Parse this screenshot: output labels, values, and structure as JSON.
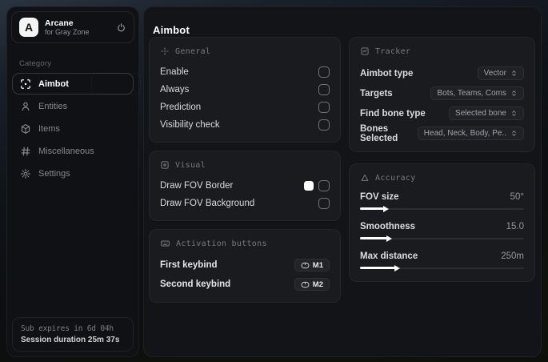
{
  "app": {
    "name": "Arcane",
    "tagline": "for Gray Zone",
    "logo_letter": "A"
  },
  "sidebar": {
    "category_label": "Category",
    "items": [
      {
        "label": "Aimbot",
        "icon": "crosshair-scan-icon",
        "active": true
      },
      {
        "label": "Entities",
        "icon": "person-icon",
        "active": false
      },
      {
        "label": "Items",
        "icon": "package-icon",
        "active": false
      },
      {
        "label": "Miscellaneous",
        "icon": "hash-grid-icon",
        "active": false
      },
      {
        "label": "Settings",
        "icon": "gear-icon",
        "active": false
      }
    ],
    "footer": {
      "sub_expires": "Sub expires in 6d 04h",
      "session_duration": "Session duration 25m 37s"
    }
  },
  "main": {
    "title": "Aimbot",
    "cards": {
      "general": {
        "title": "General",
        "rows": [
          {
            "label": "Enable",
            "checked": false
          },
          {
            "label": "Always",
            "checked": false
          },
          {
            "label": "Prediction",
            "checked": false
          },
          {
            "label": "Visibility check",
            "checked": false
          }
        ]
      },
      "visual": {
        "title": "Visual",
        "rows": [
          {
            "label": "Draw FOV Border",
            "swatch_color": "#ffffff",
            "checked": false
          },
          {
            "label": "Draw FOV Background",
            "checked": false
          }
        ]
      },
      "activation": {
        "title": "Activation buttons",
        "rows": [
          {
            "label": "First keybind",
            "key": "M1"
          },
          {
            "label": "Second keybind",
            "key": "M2"
          }
        ]
      },
      "tracker": {
        "title": "Tracker",
        "rows": [
          {
            "label": "Aimbot type",
            "value": "Vector"
          },
          {
            "label": "Targets",
            "value": "Bots, Teams, Coms"
          },
          {
            "label": "Find bone type",
            "value": "Selected bone"
          },
          {
            "label": "Bones Selected",
            "value": "Head, Neck, Body, Pe.."
          }
        ]
      },
      "accuracy": {
        "title": "Accuracy",
        "rows": [
          {
            "label": "FOV size",
            "value": "50°",
            "fill_pct": 14
          },
          {
            "label": "Smoothness",
            "value": "15.0",
            "fill_pct": 16
          },
          {
            "label": "Max distance",
            "value": "250m",
            "fill_pct": 21
          }
        ]
      }
    }
  },
  "colors": {
    "accent": "#ffffff",
    "fov_border_swatch": "#ffffff"
  }
}
